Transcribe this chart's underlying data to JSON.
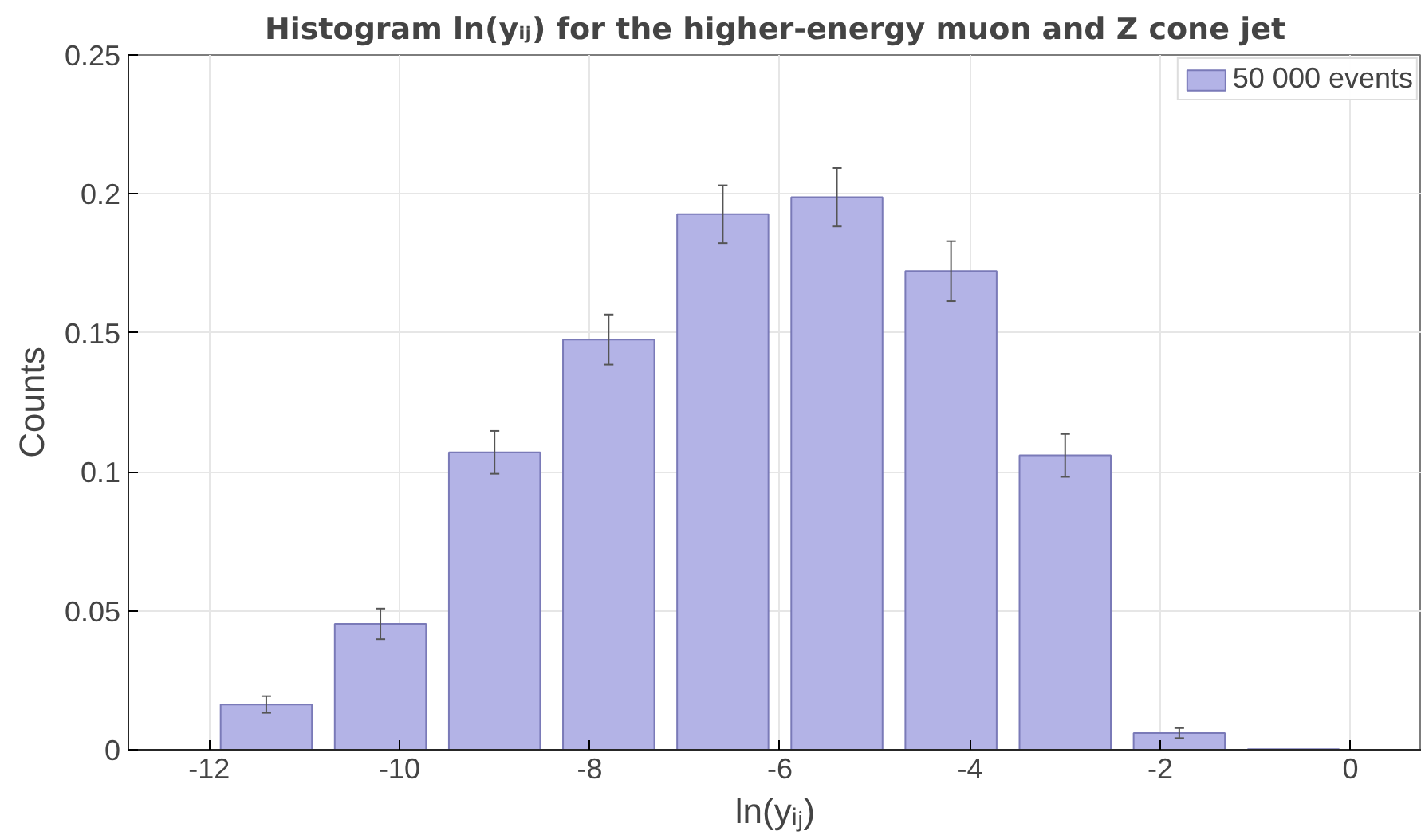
{
  "chart_data": {
    "type": "histogram",
    "title": "Histogram ln(yᵢⱼ) for the higher-energy muon and Z cone jet",
    "xlabel": "ln(yᵢⱼ)",
    "ylabel": "Counts",
    "bins": [
      -12,
      -10.8,
      -9.6,
      -8.4,
      -7.2,
      -6,
      -4.8,
      -3.6,
      -2.4,
      -1.2,
      0
    ],
    "series": [
      {
        "name": "50 000 events",
        "color": "#b3b3e6",
        "values": [
          0.0163,
          0.0453,
          0.107,
          0.1476,
          0.1927,
          0.1988,
          0.1722,
          0.1059,
          0.006,
          0.0002
        ],
        "errors": [
          0.003,
          0.0055,
          0.0077,
          0.009,
          0.0104,
          0.0105,
          0.0108,
          0.0077,
          0.0018,
          null
        ]
      }
    ],
    "xlim": [
      -12.85,
      0.75
    ],
    "xticks": [
      -12,
      -10,
      -8,
      -6,
      -4,
      -2,
      0
    ],
    "ylim": [
      0,
      0.25
    ],
    "yticks": [
      0,
      0.05,
      0.1,
      0.15,
      0.2,
      0.25
    ],
    "grid": true,
    "legend": "top right"
  }
}
